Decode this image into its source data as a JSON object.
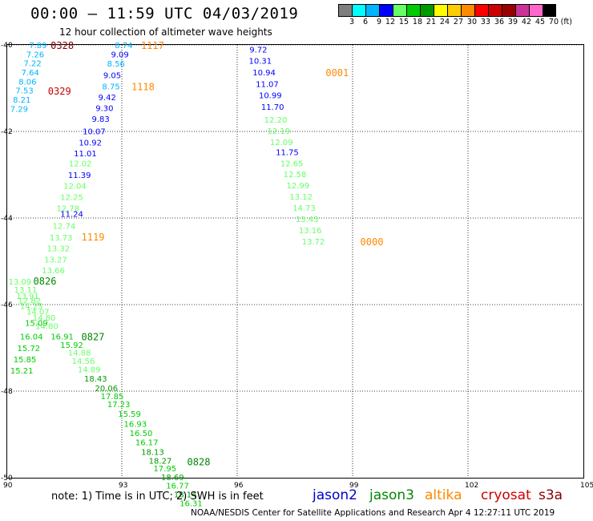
{
  "header": {
    "title": "00:00 – 11:59 UTC 04/03/2019",
    "subtitle": "12 hour collection of altimeter wave heights"
  },
  "color_scale": {
    "labels": [
      "3",
      "6",
      "9",
      "12",
      "15",
      "18",
      "21",
      "24",
      "27",
      "30",
      "33",
      "36",
      "39",
      "42",
      "45",
      "70",
      "(ft)"
    ],
    "colors": [
      "#7f7f7f",
      "#00ffff",
      "#00b4ff",
      "#0000ff",
      "#66ff66",
      "#00cc00",
      "#009900",
      "#ffff00",
      "#ffcc00",
      "#ff8c00",
      "#ff0000",
      "#cc0000",
      "#990000",
      "#cc3399",
      "#ff66cc",
      "#000000"
    ]
  },
  "axes": {
    "lat_labels": [
      "-40",
      "-42",
      "-44",
      "-46",
      "-48",
      "-50"
    ],
    "lon_labels": [
      "90",
      "93",
      "96",
      "99",
      "102",
      "105"
    ]
  },
  "satellites": {
    "jason2": {
      "label": "jason2",
      "color": "#0000cc"
    },
    "jason3": {
      "label": "jason3",
      "color": "#008800"
    },
    "altika": {
      "label": "altika",
      "color": "#ff8800"
    },
    "cryosat": {
      "label": "cryosat",
      "color": "#cc0000"
    },
    "s3a": {
      "label": "s3a",
      "color": "#880000"
    }
  },
  "tracks": [
    {
      "sat": "s3a",
      "time": "0328",
      "tlon": 91.45,
      "tlat": -40.0,
      "points": [
        [
          90.82,
          -40.0,
          "7.89"
        ],
        [
          90.75,
          -40.21,
          "7.26"
        ],
        [
          90.68,
          -40.42,
          "7.22"
        ],
        [
          90.62,
          -40.63,
          "7.64"
        ],
        [
          90.55,
          -40.84,
          "8.06"
        ],
        [
          90.47,
          -41.05,
          "7.53"
        ],
        [
          90.4,
          -41.26,
          "8.21"
        ],
        [
          90.33,
          -41.47,
          "7.29"
        ]
      ]
    },
    {
      "sat": "cryosat",
      "time": "0329",
      "tlat": -41.06,
      "tlon": 91.38,
      "points": []
    },
    {
      "sat": "jason2",
      "time": "",
      "tlon": 0,
      "tlat": 0,
      "points": [
        [
          93.05,
          -40.0,
          "8.74"
        ],
        [
          92.95,
          -40.21,
          "9.09"
        ],
        [
          92.85,
          -40.43,
          "8.56"
        ],
        [
          92.75,
          -40.69,
          "9.05"
        ],
        [
          92.62,
          -41.2,
          "9.42"
        ],
        [
          92.55,
          -41.45,
          "9.30"
        ],
        [
          92.45,
          -41.7,
          "9.83"
        ],
        [
          92.28,
          -41.99,
          "10.07"
        ],
        [
          92.18,
          -42.25,
          "10.92"
        ],
        [
          92.05,
          -42.5,
          "11.01"
        ],
        [
          91.9,
          -43.0,
          "11.39"
        ],
        [
          91.7,
          -43.9,
          "11.24"
        ]
      ]
    },
    {
      "sat": "altika",
      "time": "1117",
      "tlon": 93.8,
      "tlat": -40.0,
      "points": [
        [
          92.72,
          -40.95,
          "8.75"
        ]
      ]
    },
    {
      "sat": "altika",
      "time": "1118",
      "tlon": 93.55,
      "tlat": -40.95,
      "points": []
    },
    {
      "sat": "jason3",
      "time": "",
      "tlon": 0,
      "tlat": 0,
      "points": [
        [
          91.92,
          -42.73,
          "12.02"
        ],
        [
          91.78,
          -43.25,
          "12.04"
        ],
        [
          91.7,
          -43.51,
          "12.25"
        ],
        [
          91.6,
          -43.77,
          "12.78"
        ],
        [
          91.5,
          -44.18,
          "12.74"
        ],
        [
          91.42,
          -44.44,
          "13.73"
        ],
        [
          91.35,
          -44.69,
          "13.32"
        ],
        [
          91.28,
          -44.95,
          "13.27"
        ],
        [
          91.22,
          -45.2,
          "13.66"
        ]
      ]
    },
    {
      "sat": "altika",
      "time": "1119",
      "tlon": 92.25,
      "tlat": -44.43,
      "points": []
    },
    {
      "sat": "jason3",
      "time": "0826",
      "tlon": 91.0,
      "tlat": -45.44,
      "points": [
        [
          90.35,
          -45.46,
          "13.09"
        ],
        [
          90.5,
          -45.65,
          "13.11"
        ],
        [
          90.55,
          -45.8,
          "13.91"
        ],
        [
          90.6,
          -45.9,
          "12.82"
        ],
        [
          90.65,
          -46.03,
          "14.25"
        ],
        [
          90.82,
          -46.16,
          "14.07"
        ],
        [
          90.98,
          -46.3,
          "14.80"
        ],
        [
          91.05,
          -46.49,
          "14.80"
        ],
        [
          90.78,
          -46.42,
          "15.09"
        ],
        [
          90.65,
          -46.73,
          "16.04"
        ],
        [
          90.58,
          -47.0,
          "15.72"
        ],
        [
          90.48,
          -47.26,
          "15.85"
        ],
        [
          90.4,
          -47.52,
          "15.21"
        ],
        [
          91.45,
          -46.73,
          "16.91"
        ],
        [
          91.7,
          -46.93,
          "15.92"
        ],
        [
          91.9,
          -47.1,
          "14.88"
        ],
        [
          92.0,
          -47.3,
          "14.56"
        ],
        [
          92.15,
          -47.49,
          "14.89"
        ],
        [
          92.32,
          -47.7,
          "18.43"
        ],
        [
          92.6,
          -47.93,
          "20.06"
        ],
        [
          92.75,
          -48.11,
          "17.85"
        ],
        [
          92.92,
          -48.3,
          "17.23"
        ],
        [
          93.2,
          -48.52,
          "15.59"
        ],
        [
          93.35,
          -48.75,
          "16.93"
        ],
        [
          93.5,
          -48.96,
          "16.50"
        ],
        [
          93.65,
          -49.18,
          "16.17"
        ],
        [
          93.8,
          -49.4,
          "18.13"
        ],
        [
          94.0,
          -49.6,
          "18.27"
        ],
        [
          94.12,
          -49.78,
          "17.95"
        ],
        [
          94.32,
          -49.98,
          "18.69"
        ],
        [
          94.45,
          -50.18,
          "16.77"
        ],
        [
          94.65,
          -50.38,
          "18.14"
        ],
        [
          94.8,
          -50.58,
          "16.31"
        ]
      ]
    },
    {
      "sat": "jason3",
      "time": "0827",
      "tlon": 92.25,
      "tlat": -46.73,
      "points": []
    },
    {
      "sat": "jason3",
      "time": "0828",
      "tlon": 95.0,
      "tlat": -49.62,
      "points": []
    },
    {
      "sat": "jason2",
      "time": "",
      "tlon": 0,
      "tlat": 0,
      "points": [
        [
          96.55,
          -40.1,
          "9.72"
        ],
        [
          96.6,
          -40.36,
          "10.31"
        ],
        [
          96.7,
          -40.63,
          "10.94"
        ],
        [
          96.78,
          -40.9,
          "11.07"
        ],
        [
          96.86,
          -41.16,
          "10.99"
        ],
        [
          96.92,
          -41.43,
          "11.70"
        ],
        [
          97.3,
          -42.47,
          "11.75"
        ]
      ]
    },
    {
      "sat": "altika",
      "time": "0001",
      "tlon": 98.6,
      "tlat": -40.63,
      "points": []
    },
    {
      "sat": "jason3",
      "time": "",
      "tlon": 0,
      "tlat": 0,
      "points": [
        [
          97.0,
          -41.72,
          "12.20"
        ],
        [
          97.08,
          -41.98,
          "12.19"
        ],
        [
          97.15,
          -42.24,
          "12.09"
        ],
        [
          97.42,
          -42.73,
          "12.65"
        ],
        [
          97.5,
          -42.98,
          "12.58"
        ],
        [
          97.58,
          -43.24,
          "12.99"
        ],
        [
          97.66,
          -43.5,
          "13.12"
        ],
        [
          97.74,
          -43.76,
          "14.73"
        ],
        [
          97.82,
          -44.02,
          "13.43"
        ],
        [
          97.9,
          -44.28,
          "13.16"
        ],
        [
          97.98,
          -44.54,
          "13.72"
        ]
      ]
    },
    {
      "sat": "altika",
      "time": "0000",
      "tlon": 99.5,
      "tlat": -44.54,
      "points": []
    }
  ],
  "note": "note: 1) Time is in UTC; 2) SWH is in feet",
  "footer": "NOAA/NESDIS Center for Satellite Applications and Research   Apr  4 12:27:11 UTC 2019"
}
